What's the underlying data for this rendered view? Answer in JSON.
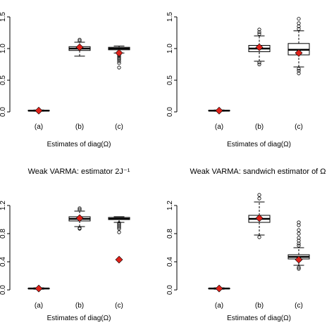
{
  "chart_data": [
    {
      "type": "box",
      "xlabel": "Estimates of diag(Ω)",
      "categories": [
        "(a)",
        "(b)",
        "(c)"
      ],
      "mean_color": "#e0211a",
      "ylim": [
        0,
        1.5
      ],
      "yticks": [
        {
          "value": 0,
          "label": "0.0"
        },
        {
          "value": 0.5,
          "label": "0.5"
        },
        {
          "value": 1,
          "label": "1.0"
        },
        {
          "value": 1.5,
          "label": "1.5"
        }
      ],
      "boxes": [
        {
          "whislo": 0.01,
          "q1": 0.015,
          "med": 0.02,
          "q3": 0.025,
          "whishi": 0.03,
          "outliers": [],
          "mean": 0.02
        },
        {
          "whislo": 0.88,
          "q1": 0.97,
          "med": 1.0,
          "q3": 1.03,
          "whishi": 1.1,
          "outliers": [
            1.12,
            1.14
          ],
          "mean": 1.02
        },
        {
          "whislo": 0.93,
          "q1": 0.98,
          "med": 1.0,
          "q3": 1.02,
          "whishi": 1.04,
          "outliers": [
            0.91,
            0.89,
            0.87,
            0.85,
            0.83,
            0.8,
            0.77,
            0.7
          ],
          "mean": 0.93
        }
      ]
    },
    {
      "type": "box",
      "xlabel": "Estimates of diag(Ω)",
      "categories": [
        "(a)",
        "(b)",
        "(c)"
      ],
      "mean_color": "#e0211a",
      "ylim": [
        0,
        1.5
      ],
      "yticks": [
        {
          "value": 0,
          "label": "0.0"
        },
        {
          "value": 0.5,
          "label": "0.5"
        },
        {
          "value": 1,
          "label": "1.0"
        },
        {
          "value": 1.5,
          "label": "1.5"
        }
      ],
      "boxes": [
        {
          "whislo": 0.01,
          "q1": 0.015,
          "med": 0.02,
          "q3": 0.025,
          "whishi": 0.03,
          "outliers": [],
          "mean": 0.02
        },
        {
          "whislo": 0.8,
          "q1": 0.95,
          "med": 1.0,
          "q3": 1.05,
          "whishi": 1.2,
          "outliers": [
            0.78,
            0.75,
            1.23,
            1.26,
            1.3
          ],
          "mean": 1.02
        },
        {
          "whislo": 0.71,
          "q1": 0.9,
          "med": 0.98,
          "q3": 1.08,
          "whishi": 1.28,
          "outliers": [
            0.68,
            0.65,
            0.61,
            1.31,
            1.35,
            1.4,
            1.47
          ],
          "mean": 0.93
        }
      ]
    },
    {
      "type": "box",
      "title": "Weak VARMA: estimator  2J⁻¹",
      "xlabel": "Estimates of diag(Ω)",
      "categories": [
        "(a)",
        "(b)",
        "(c)"
      ],
      "mean_color": "#e0211a",
      "ylim": [
        0,
        1.35
      ],
      "yticks": [
        {
          "value": 0,
          "label": "0.0"
        },
        {
          "value": 0.4,
          "label": "0.4"
        },
        {
          "value": 0.8,
          "label": "0.8"
        },
        {
          "value": 1.2,
          "label": "1.2"
        }
      ],
      "boxes": [
        {
          "whislo": 0.01,
          "q1": 0.015,
          "med": 0.02,
          "q3": 0.025,
          "whishi": 0.03,
          "outliers": [],
          "mean": 0.02
        },
        {
          "whislo": 0.9,
          "q1": 0.98,
          "med": 1.01,
          "q3": 1.04,
          "whishi": 1.12,
          "outliers": [
            0.87,
            0.88,
            1.14,
            1.16
          ],
          "mean": 1.02
        },
        {
          "whislo": 0.96,
          "q1": 1.0,
          "med": 1.01,
          "q3": 1.03,
          "whishi": 1.04,
          "outliers": [
            0.95,
            0.93,
            0.91,
            0.89,
            0.87,
            0.82
          ],
          "mean": 0.43
        }
      ]
    },
    {
      "type": "box",
      "title": "Weak VARMA: sandwich estimator of Ω",
      "xlabel": "Estimates of diag(Ω)",
      "categories": [
        "(a)",
        "(b)",
        "(c)"
      ],
      "mean_color": "#e0211a",
      "ylim": [
        0,
        1.35
      ],
      "yticks": [
        {
          "value": 0,
          "label": "0.0"
        },
        {
          "value": 0.4,
          "label": "0.4"
        },
        {
          "value": 0.8,
          "label": "0.8"
        },
        {
          "value": 1.2,
          "label": "1.2"
        }
      ],
      "boxes": [
        {
          "whislo": 0.01,
          "q1": 0.015,
          "med": 0.02,
          "q3": 0.025,
          "whishi": 0.03,
          "outliers": [],
          "mean": 0.02
        },
        {
          "whislo": 0.78,
          "q1": 0.96,
          "med": 1.01,
          "q3": 1.06,
          "whishi": 1.25,
          "outliers": [
            0.75,
            1.3,
            1.35
          ],
          "mean": 1.02
        },
        {
          "whislo": 0.35,
          "q1": 0.44,
          "med": 0.47,
          "q3": 0.5,
          "whishi": 0.6,
          "outliers": [
            0.32,
            0.3,
            0.63,
            0.66,
            0.7,
            0.74,
            0.8,
            0.85,
            0.92,
            0.96
          ],
          "mean": 0.43
        }
      ]
    }
  ]
}
